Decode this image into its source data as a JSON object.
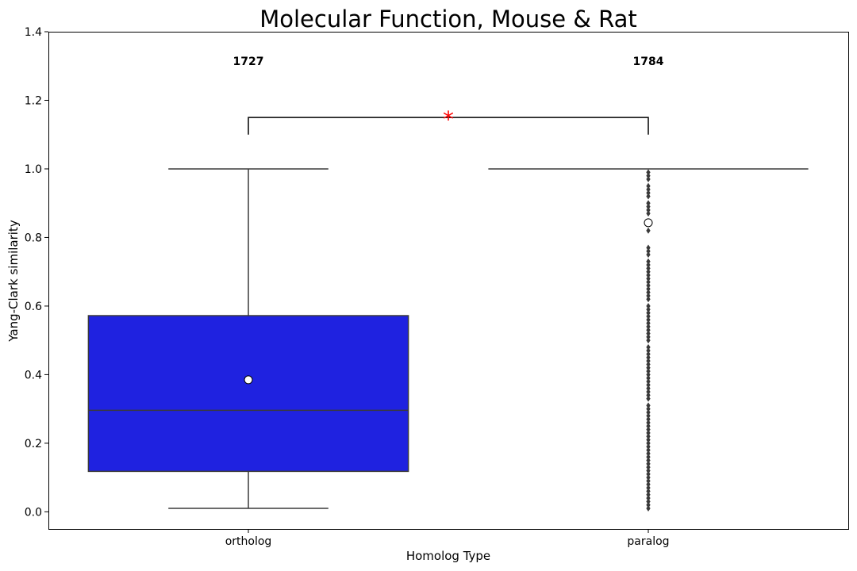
{
  "chart_data": {
    "type": "box",
    "title": "Molecular Function, Mouse & Rat",
    "xlabel": "Homolog Type",
    "ylabel": "Yang-Clark similarity",
    "ylim": [
      -0.05,
      1.4
    ],
    "yticks": [
      0.0,
      0.2,
      0.4,
      0.6,
      0.8,
      1.0,
      1.2,
      1.4
    ],
    "ytick_labels": [
      "0.0",
      "0.2",
      "0.4",
      "0.6",
      "0.8",
      "1.0",
      "1.2",
      "1.4"
    ],
    "grid": false,
    "legend": "none",
    "categories": [
      "ortholog",
      "paralog"
    ],
    "counts": [
      "1727",
      "1784"
    ],
    "significance_marker": "*",
    "colors": {
      "ortholog_box": "#1f22e0",
      "box_edge": "#3a3a3a",
      "mean_marker": "#ffffff",
      "significance": "#ff0000"
    },
    "boxes": [
      {
        "category": "ortholog",
        "whisker_low": 0.01,
        "q1": 0.118,
        "median": 0.296,
        "notch_low": 0.278,
        "notch_high": 0.313,
        "q3": 0.572,
        "whisker_high": 1.0,
        "mean": 0.385,
        "outliers": []
      },
      {
        "category": "paralog",
        "whisker_low": 1.0,
        "q1": 1.0,
        "median": 1.0,
        "q3": 1.0,
        "whisker_high": 1.0,
        "mean": 0.843,
        "outliers": [
          0.99,
          0.98,
          0.97,
          0.95,
          0.94,
          0.93,
          0.92,
          0.9,
          0.89,
          0.88,
          0.87,
          0.82,
          0.77,
          0.76,
          0.75,
          0.73,
          0.72,
          0.71,
          0.7,
          0.69,
          0.68,
          0.67,
          0.66,
          0.65,
          0.64,
          0.63,
          0.62,
          0.6,
          0.59,
          0.58,
          0.57,
          0.56,
          0.55,
          0.54,
          0.53,
          0.52,
          0.51,
          0.5,
          0.48,
          0.47,
          0.46,
          0.45,
          0.44,
          0.43,
          0.42,
          0.41,
          0.4,
          0.39,
          0.38,
          0.37,
          0.36,
          0.35,
          0.34,
          0.33,
          0.31,
          0.3,
          0.29,
          0.28,
          0.27,
          0.26,
          0.25,
          0.24,
          0.23,
          0.22,
          0.21,
          0.2,
          0.19,
          0.18,
          0.17,
          0.16,
          0.15,
          0.14,
          0.13,
          0.12,
          0.11,
          0.1,
          0.09,
          0.08,
          0.07,
          0.06,
          0.05,
          0.04,
          0.03,
          0.02,
          0.01
        ]
      }
    ],
    "significance_bracket": {
      "between": [
        "ortholog",
        "paralog"
      ],
      "y_low": 1.1,
      "y_high": 1.15
    }
  }
}
